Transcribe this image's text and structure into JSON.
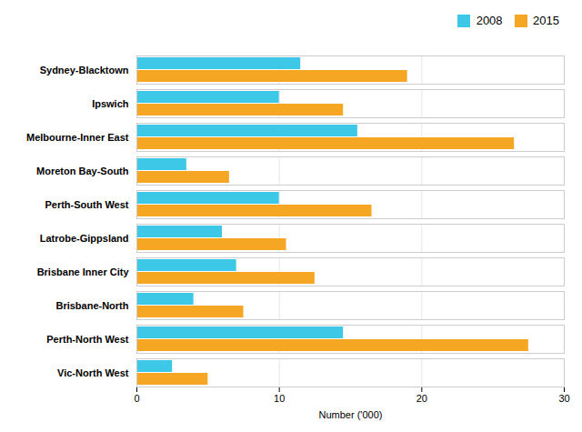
{
  "chart_data": {
    "type": "bar",
    "orientation": "horizontal",
    "categories": [
      "Sydney-Blacktown",
      "Ipswich",
      "Melbourne-Inner East",
      "Moreton Bay-South",
      "Perth-South West",
      "Latrobe-Gippsland",
      "Brisbane Inner City",
      "Brisbane-North",
      "Perth-North West",
      "Vic-North West"
    ],
    "series": [
      {
        "name": "2008",
        "color": "#3EC8E8",
        "values": [
          11.5,
          10.0,
          15.5,
          3.5,
          10.0,
          6.0,
          7.0,
          4.0,
          14.5,
          2.5
        ]
      },
      {
        "name": "2015",
        "color": "#F5A623",
        "values": [
          19.0,
          14.5,
          26.5,
          6.5,
          16.5,
          10.5,
          12.5,
          7.5,
          27.5,
          5.0
        ]
      }
    ],
    "xlabel": "Number ('000)",
    "xlim": [
      0,
      30
    ],
    "xticks": [
      0,
      10,
      20,
      30
    ],
    "grid": true,
    "legend": "upper right"
  }
}
